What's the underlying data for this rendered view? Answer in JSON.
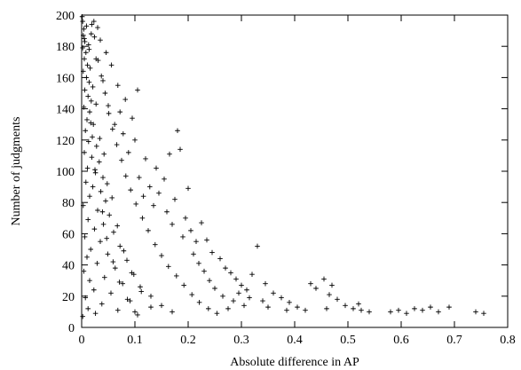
{
  "chart_data": {
    "type": "scatter",
    "title": "",
    "xlabel": "Absolute difference in AP",
    "ylabel": "Number of judgments",
    "xlim": [
      0,
      0.8
    ],
    "ylim": [
      0,
      200
    ],
    "xticks": [
      0,
      0.1,
      0.2,
      0.3,
      0.4,
      0.5,
      0.6,
      0.7,
      0.8
    ],
    "yticks": [
      0,
      20,
      40,
      60,
      80,
      100,
      120,
      140,
      160,
      180,
      200
    ],
    "xtick_labels": [
      "0",
      "0.1",
      "0.2",
      "0.3",
      "0.4",
      "0.5",
      "0.6",
      "0.7",
      "0.8"
    ],
    "ytick_labels": [
      "0",
      "20",
      "40",
      "60",
      "80",
      "100",
      "120",
      "140",
      "160",
      "180",
      "200"
    ],
    "marker": "+",
    "marker_color": "#000000",
    "grid": false,
    "legend": false,
    "series": [
      {
        "points": [
          [
            0.001,
            199
          ],
          [
            0.002,
            196
          ],
          [
            0.004,
            191
          ],
          [
            0.003,
            187
          ],
          [
            0.006,
            183
          ],
          [
            0.002,
            179
          ],
          [
            0.008,
            176
          ],
          [
            0.005,
            172
          ],
          [
            0.011,
            168
          ],
          [
            0.003,
            164
          ],
          [
            0.009,
            160
          ],
          [
            0.014,
            157
          ],
          [
            0.006,
            152
          ],
          [
            0.012,
            148
          ],
          [
            0.018,
            145
          ],
          [
            0.004,
            141
          ],
          [
            0.015,
            138
          ],
          [
            0.01,
            133
          ],
          [
            0.022,
            130
          ],
          [
            0.007,
            126
          ],
          [
            0.02,
            122
          ],
          [
            0.013,
            119
          ],
          [
            0.028,
            116
          ],
          [
            0.005,
            112
          ],
          [
            0.019,
            109
          ],
          [
            0.033,
            106
          ],
          [
            0.011,
            102
          ],
          [
            0.026,
            99
          ],
          [
            0.04,
            96
          ],
          [
            0.008,
            93
          ],
          [
            0.021,
            90
          ],
          [
            0.036,
            87
          ],
          [
            0.015,
            84
          ],
          [
            0.045,
            81
          ],
          [
            0.003,
            78
          ],
          [
            0.03,
            75
          ],
          [
            0.052,
            72
          ],
          [
            0.012,
            69
          ],
          [
            0.041,
            66
          ],
          [
            0.024,
            63
          ],
          [
            0.06,
            61
          ],
          [
            0.006,
            58
          ],
          [
            0.035,
            55
          ],
          [
            0.072,
            52
          ],
          [
            0.017,
            50
          ],
          [
            0.049,
            47
          ],
          [
            0.01,
            45
          ],
          [
            0.085,
            43
          ],
          [
            0.029,
            41
          ],
          [
            0.063,
            38
          ],
          [
            0.004,
            36
          ],
          [
            0.098,
            34
          ],
          [
            0.043,
            32
          ],
          [
            0.015,
            30
          ],
          [
            0.077,
            28
          ],
          [
            0.11,
            26
          ],
          [
            0.023,
            24
          ],
          [
            0.055,
            22
          ],
          [
            0.13,
            20
          ],
          [
            0.007,
            19
          ],
          [
            0.091,
            17
          ],
          [
            0.038,
            15
          ],
          [
            0.15,
            14
          ],
          [
            0.012,
            12
          ],
          [
            0.068,
            11
          ],
          [
            0.17,
            10
          ],
          [
            0.026,
            9
          ],
          [
            0.105,
            8
          ],
          [
            0.002,
            7
          ],
          [
            0.019,
            194
          ],
          [
            0.024,
            186
          ],
          [
            0.013,
            181
          ],
          [
            0.031,
            171
          ],
          [
            0.016,
            166
          ],
          [
            0.037,
            161
          ],
          [
            0.021,
            154
          ],
          [
            0.044,
            150
          ],
          [
            0.027,
            143
          ],
          [
            0.051,
            137
          ],
          [
            0.017,
            131
          ],
          [
            0.058,
            127
          ],
          [
            0.034,
            121
          ],
          [
            0.066,
            117
          ],
          [
            0.042,
            111
          ],
          [
            0.075,
            107
          ],
          [
            0.025,
            101
          ],
          [
            0.083,
            97
          ],
          [
            0.048,
            92
          ],
          [
            0.092,
            88
          ],
          [
            0.057,
            83
          ],
          [
            0.102,
            79
          ],
          [
            0.039,
            74
          ],
          [
            0.114,
            70
          ],
          [
            0.067,
            65
          ],
          [
            0.125,
            62
          ],
          [
            0.047,
            57
          ],
          [
            0.138,
            53
          ],
          [
            0.079,
            49
          ],
          [
            0.15,
            46
          ],
          [
            0.059,
            42
          ],
          [
            0.163,
            39
          ],
          [
            0.094,
            35
          ],
          [
            0.178,
            33
          ],
          [
            0.071,
            29
          ],
          [
            0.192,
            27
          ],
          [
            0.112,
            23
          ],
          [
            0.207,
            21
          ],
          [
            0.086,
            18
          ],
          [
            0.221,
            16
          ],
          [
            0.13,
            13
          ],
          [
            0.238,
            12
          ],
          [
            0.1,
            10
          ],
          [
            0.254,
            9
          ],
          [
            0.18,
            126
          ],
          [
            0.165,
            111
          ],
          [
            0.105,
            152
          ],
          [
            0.185,
            114
          ],
          [
            0.2,
            89
          ],
          [
            0.225,
            67
          ],
          [
            0.235,
            56
          ],
          [
            0.245,
            48
          ],
          [
            0.26,
            44
          ],
          [
            0.27,
            38
          ],
          [
            0.28,
            35
          ],
          [
            0.29,
            31
          ],
          [
            0.3,
            27
          ],
          [
            0.31,
            24
          ],
          [
            0.33,
            52
          ],
          [
            0.32,
            34
          ],
          [
            0.345,
            28
          ],
          [
            0.36,
            22
          ],
          [
            0.375,
            19
          ],
          [
            0.39,
            16
          ],
          [
            0.405,
            13
          ],
          [
            0.42,
            11
          ],
          [
            0.43,
            28
          ],
          [
            0.44,
            25
          ],
          [
            0.455,
            31
          ],
          [
            0.47,
            27
          ],
          [
            0.465,
            21
          ],
          [
            0.48,
            18
          ],
          [
            0.495,
            14
          ],
          [
            0.51,
            12
          ],
          [
            0.525,
            11
          ],
          [
            0.54,
            10
          ],
          [
            0.58,
            10
          ],
          [
            0.595,
            11
          ],
          [
            0.61,
            9
          ],
          [
            0.625,
            12
          ],
          [
            0.64,
            11
          ],
          [
            0.655,
            13
          ],
          [
            0.67,
            10
          ],
          [
            0.69,
            13
          ],
          [
            0.74,
            10
          ],
          [
            0.755,
            9
          ],
          [
            0.52,
            15
          ],
          [
            0.46,
            12
          ],
          [
            0.385,
            11
          ],
          [
            0.35,
            13
          ],
          [
            0.34,
            17
          ],
          [
            0.315,
            19
          ],
          [
            0.305,
            14
          ],
          [
            0.295,
            22
          ],
          [
            0.285,
            17
          ],
          [
            0.275,
            12
          ],
          [
            0.265,
            20
          ],
          [
            0.25,
            25
          ],
          [
            0.24,
            30
          ],
          [
            0.23,
            36
          ],
          [
            0.22,
            41
          ],
          [
            0.21,
            47
          ],
          [
            0.215,
            55
          ],
          [
            0.205,
            62
          ],
          [
            0.195,
            70
          ],
          [
            0.19,
            58
          ],
          [
            0.175,
            82
          ],
          [
            0.17,
            66
          ],
          [
            0.16,
            74
          ],
          [
            0.155,
            95
          ],
          [
            0.145,
            86
          ],
          [
            0.14,
            102
          ],
          [
            0.135,
            78
          ],
          [
            0.128,
            90
          ],
          [
            0.12,
            108
          ],
          [
            0.116,
            84
          ],
          [
            0.108,
            96
          ],
          [
            0.1,
            120
          ],
          [
            0.095,
            134
          ],
          [
            0.088,
            112
          ],
          [
            0.082,
            146
          ],
          [
            0.078,
            124
          ],
          [
            0.072,
            138
          ],
          [
            0.068,
            155
          ],
          [
            0.062,
            130
          ],
          [
            0.056,
            168
          ],
          [
            0.05,
            142
          ],
          [
            0.046,
            176
          ],
          [
            0.04,
            158
          ],
          [
            0.035,
            184
          ],
          [
            0.03,
            192
          ],
          [
            0.027,
            172
          ],
          [
            0.023,
            196
          ],
          [
            0.018,
            188
          ],
          [
            0.014,
            178
          ],
          [
            0.009,
            193
          ],
          [
            0.005,
            185
          ]
        ]
      }
    ]
  }
}
